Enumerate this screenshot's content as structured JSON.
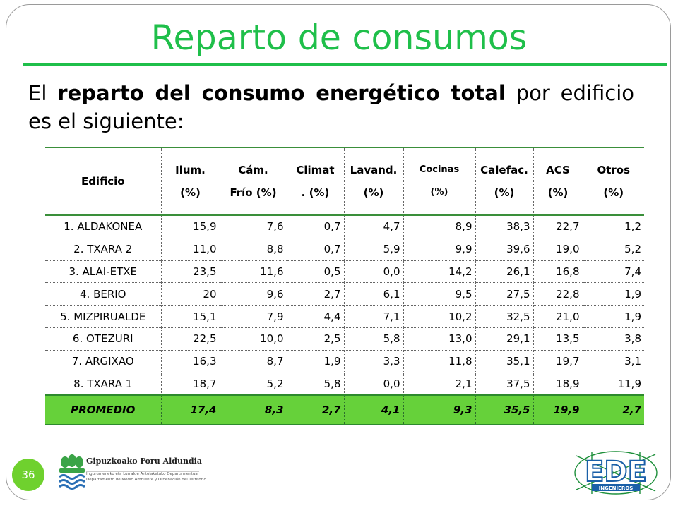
{
  "slide": {
    "title": "Reparto de consumos",
    "intro_prefix": "El ",
    "intro_bold": "reparto del consumo energético total",
    "intro_suffix": " por edificio es el siguiente:",
    "page_number": "36"
  },
  "table": {
    "headers": [
      {
        "line1": "Edificio",
        "line2": ""
      },
      {
        "line1": "Ilum.",
        "line2": "(%)"
      },
      {
        "line1": "Cám.",
        "line2": "Frío (%)"
      },
      {
        "line1": "Climat",
        "line2": ". (%)"
      },
      {
        "line1": "Lavand.",
        "line2": "(%)"
      },
      {
        "line1": "Cocinas",
        "line2": "(%)"
      },
      {
        "line1": "Calefac.",
        "line2": "(%)"
      },
      {
        "line1": "ACS",
        "line2": "(%)"
      },
      {
        "line1": "Otros",
        "line2": "(%)"
      }
    ],
    "rows": [
      [
        "1. ALDAKONEA",
        "15,9",
        "7,6",
        "0,7",
        "4,7",
        "8,9",
        "38,3",
        "22,7",
        "1,2"
      ],
      [
        "2. TXARA 2",
        "11,0",
        "8,8",
        "0,7",
        "5,9",
        "9,9",
        "39,6",
        "19,0",
        "5,2"
      ],
      [
        "3. ALAI-ETXE",
        "23,5",
        "11,6",
        "0,5",
        "0,0",
        "14,2",
        "26,1",
        "16,8",
        "7,4"
      ],
      [
        "4. BERIO",
        "20",
        "9,6",
        "2,7",
        "6,1",
        "9,5",
        "27,5",
        "22,8",
        "1,9"
      ],
      [
        "5. MIZPIRUALDE",
        "15,1",
        "7,9",
        "4,4",
        "7,1",
        "10,2",
        "32,5",
        "21,0",
        "1,9"
      ],
      [
        "6. OTEZURI",
        "22,5",
        "10,0",
        "2,5",
        "5,8",
        "13,0",
        "29,1",
        "13,5",
        "3,8"
      ],
      [
        "7. ARGIXAO",
        "16,3",
        "8,7",
        "1,9",
        "3,3",
        "11,8",
        "35,1",
        "19,7",
        "3,1"
      ],
      [
        "8. TXARA 1",
        "18,7",
        "5,2",
        "5,8",
        "0,0",
        "2,1",
        "37,5",
        "18,9",
        "11,9"
      ]
    ],
    "average": [
      "PROMEDIO",
      "17,4",
      "8,3",
      "2,7",
      "4,1",
      "9,3",
      "35,5",
      "19,9",
      "2,7"
    ]
  },
  "logos": {
    "left_title": "Gipuzkoako Foru Aldundia",
    "left_line1": "Ingurumeneko eta Lurralde Antolaketako Departamentua",
    "left_line2": "Departamento de Medio Ambiente y Ordenación del Territorio",
    "right_letters": "EDE",
    "right_word": "INGENIEROS"
  },
  "colors": {
    "accent_green": "#1fbf4a",
    "average_row_bg": "#66d13a",
    "badge_green": "#6fd12e"
  }
}
